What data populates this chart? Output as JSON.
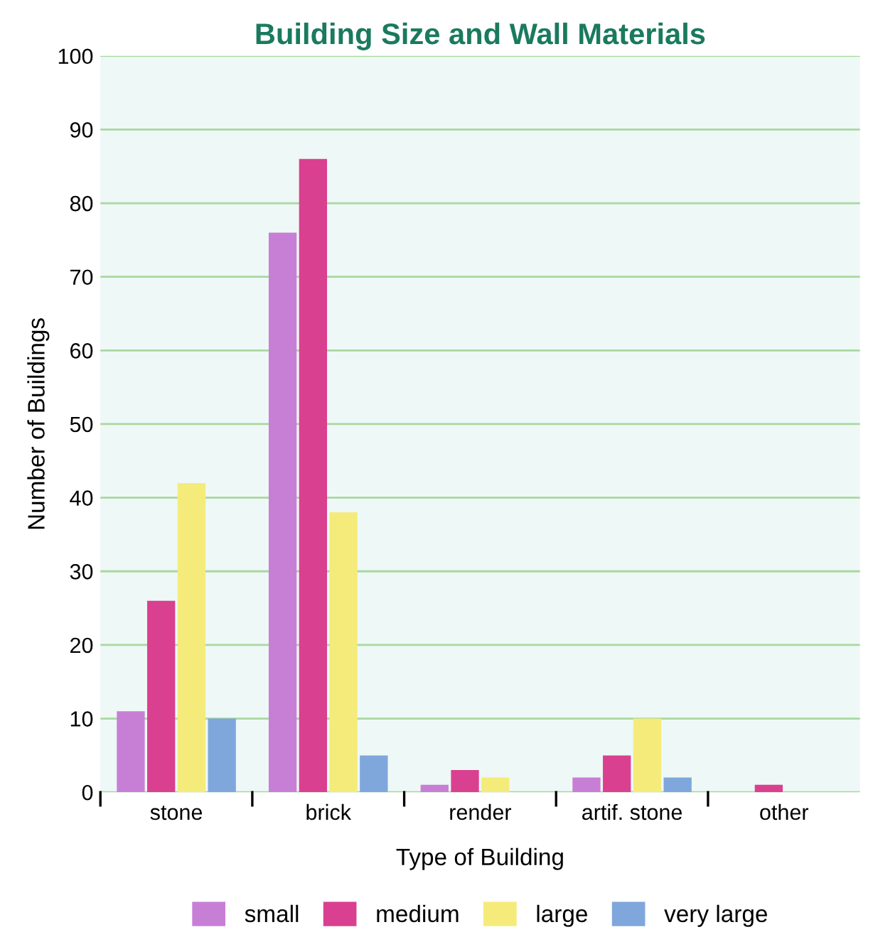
{
  "chart_data": {
    "type": "bar",
    "title": "Building Size and Wall Materials",
    "xlabel": "Type of Building",
    "ylabel": "Number of Buildings",
    "categories": [
      "stone",
      "brick",
      "render",
      "artif. stone",
      "other"
    ],
    "series": [
      {
        "name": "small",
        "color": "#c77fd6",
        "values": [
          11,
          76,
          1,
          2,
          0
        ]
      },
      {
        "name": "medium",
        "color": "#d9408f",
        "values": [
          26,
          86,
          3,
          5,
          1
        ]
      },
      {
        "name": "large",
        "color": "#f5eb7a",
        "values": [
          42,
          38,
          2,
          10,
          0
        ]
      },
      {
        "name": "very large",
        "color": "#7fa7dc",
        "values": [
          10,
          5,
          0,
          2,
          0
        ]
      }
    ],
    "ylim": [
      0,
      100
    ],
    "yticks": [
      0,
      10,
      20,
      30,
      40,
      50,
      60,
      70,
      80,
      90,
      100
    ],
    "grid": "y",
    "legend": "bottom"
  }
}
